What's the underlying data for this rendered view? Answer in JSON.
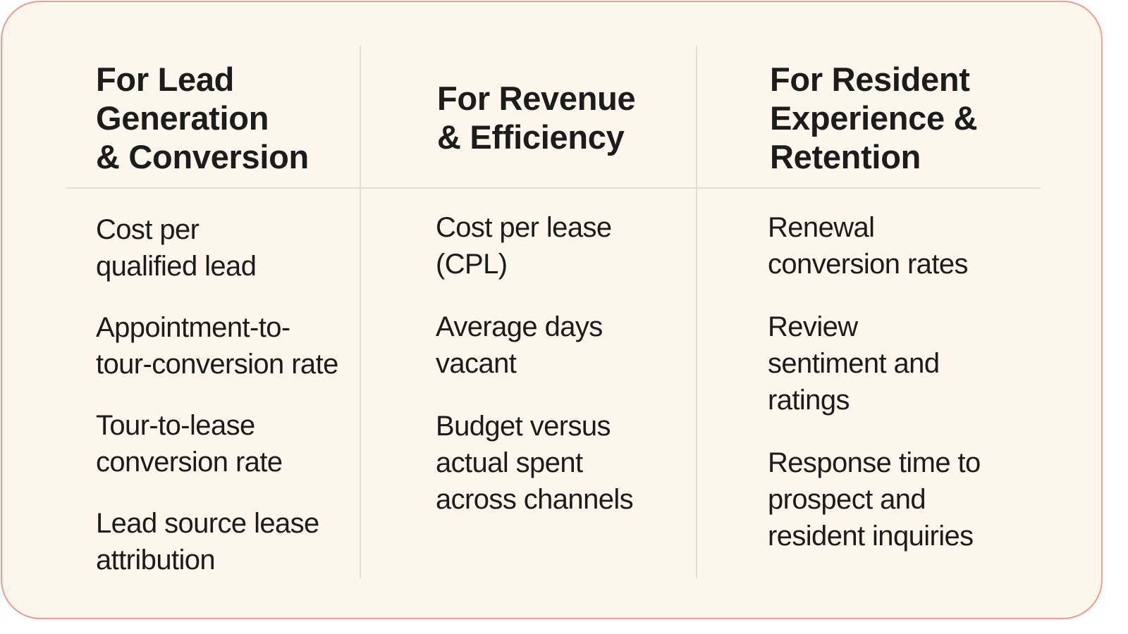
{
  "columns": [
    {
      "heading": [
        "For Lead",
        "Generation",
        "& Conversion"
      ],
      "items": [
        [
          "Cost per",
          "qualified lead"
        ],
        [
          "Appointment-to-",
          "tour-conversion rate"
        ],
        [
          "Tour-to-lease",
          "conversion rate"
        ],
        [
          "Lead source lease",
          "attribution"
        ]
      ]
    },
    {
      "heading": [
        "For Revenue",
        "& Efficiency"
      ],
      "items": [
        [
          "Cost per lease",
          "(CPL)"
        ],
        [
          "Average days",
          "vacant"
        ],
        [
          "Budget versus",
          "actual spent",
          "across channels"
        ]
      ]
    },
    {
      "heading": [
        "For Resident",
        "Experience &",
        "Retention"
      ],
      "items": [
        [
          "Renewal",
          "conversion rates"
        ],
        [
          "Review",
          "sentiment and",
          "ratings"
        ],
        [
          "Response time to",
          "prospect and",
          "resident inquiries"
        ]
      ]
    }
  ]
}
